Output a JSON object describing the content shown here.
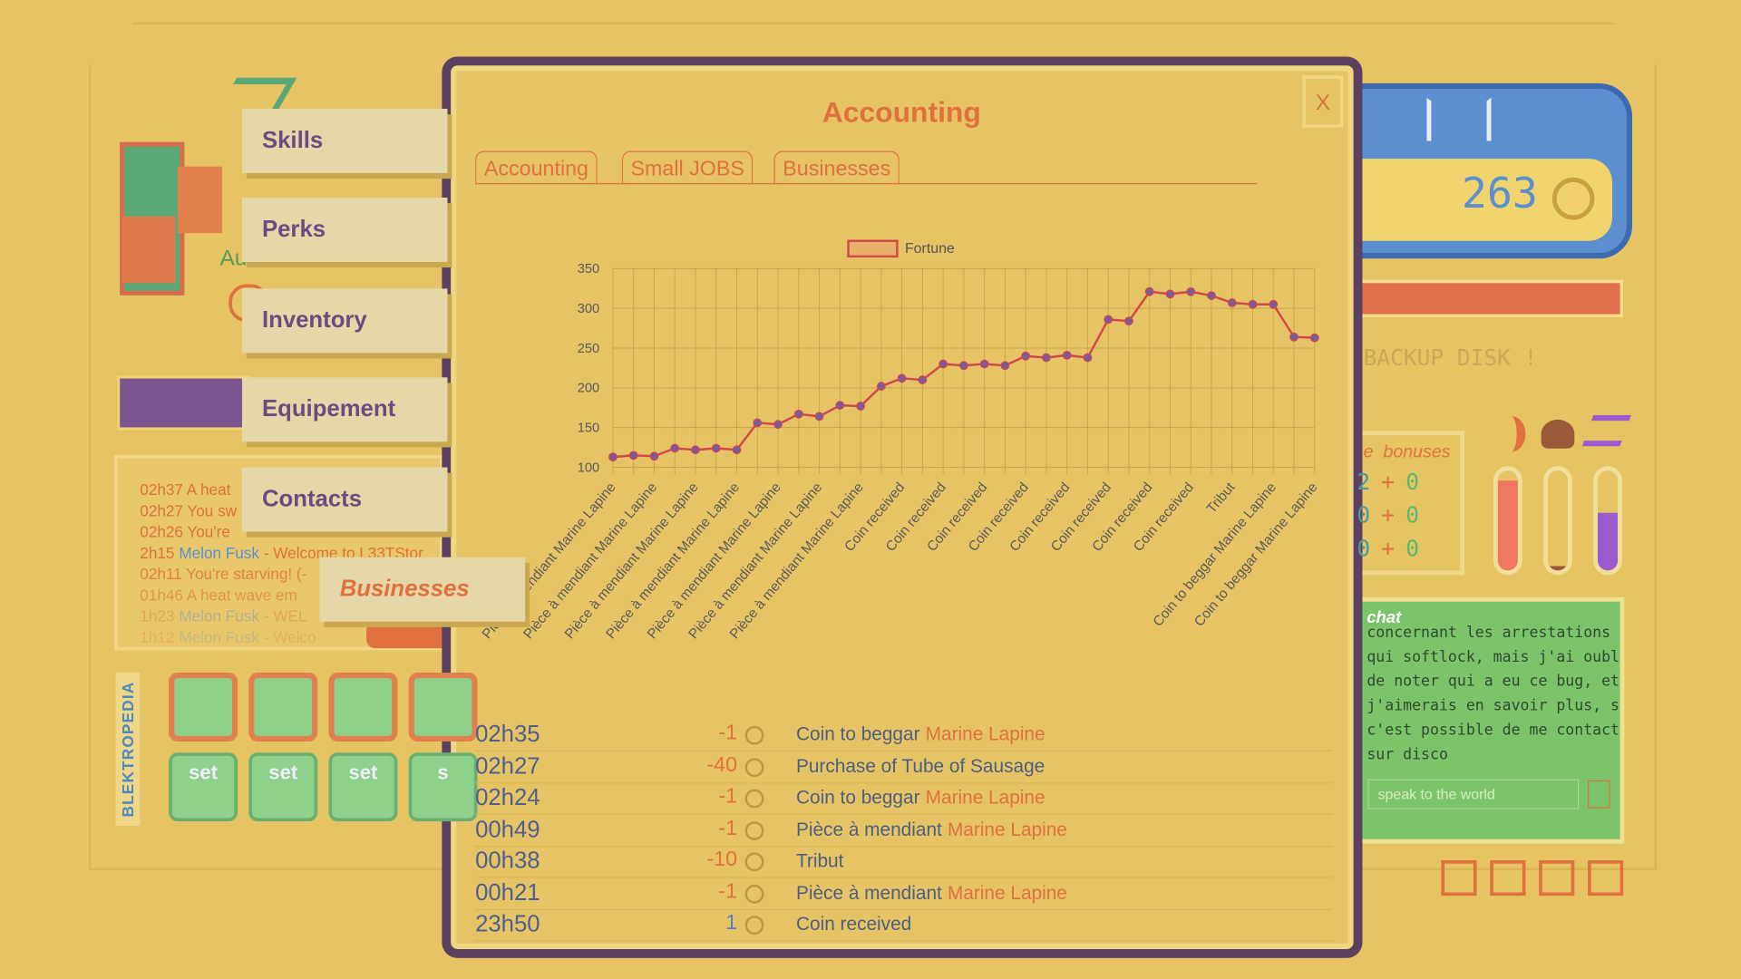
{
  "logo": {
    "subtitle": "Au"
  },
  "menu": [
    "Skills",
    "Perks",
    "Inventory",
    "Equipement",
    "Contacts",
    "Businesses"
  ],
  "log": [
    {
      "text": "02h37 A heat"
    },
    {
      "text": "02h27 You sw"
    },
    {
      "text": "02h26 You're"
    },
    {
      "time": "2h15",
      "user": "Melon Fusk",
      "text": "- Welcome to L33TStor"
    },
    {
      "text": "02h11 You're starving! (-"
    },
    {
      "text": "01h46 A heat wave em"
    },
    {
      "time": "1h23",
      "user": "Melon Fusk",
      "text": "- WEL"
    },
    {
      "time": "1h12",
      "user": "Melon Fusk",
      "text": "- Welco"
    }
  ],
  "wiki": "BLEKTROPEDIA",
  "set_buttons": [
    "set",
    "set",
    "set",
    "s"
  ],
  "modal": {
    "title": "Accounting",
    "close": "X",
    "tabs": [
      "Accounting",
      "Small JOBS",
      "Businesses"
    ]
  },
  "chart_data": {
    "type": "line",
    "legend": "Fortune",
    "categories": [
      "Pièce à mendiant Marine Lapine",
      null,
      "Pièce à mendiant Marine Lapine",
      null,
      "Pièce à mendiant Marine Lapine",
      null,
      "Pièce à mendiant Marine Lapine",
      null,
      "Pièce à mendiant Marine Lapine",
      null,
      "Pièce à mendiant Marine Lapine",
      null,
      "Pièce à mendiant Marine Lapine",
      null,
      "Coin received",
      null,
      "Coin received",
      null,
      "Coin received",
      null,
      "Coin received",
      null,
      "Coin received",
      null,
      "Coin received",
      null,
      "Coin received",
      null,
      "Coin received",
      null,
      "Tribut",
      null,
      "Coin to beggar Marine Lapine",
      null,
      "Coin to beggar Marine Lapine"
    ],
    "series": [
      {
        "name": "Fortune",
        "color": "#d2474a",
        "point_color": "#7b5a9e",
        "values": [
          113,
          115,
          114,
          124,
          122,
          124,
          122,
          156,
          154,
          167,
          164,
          178,
          177,
          202,
          212,
          210,
          230,
          228,
          230,
          228,
          240,
          238,
          241,
          238,
          286,
          284,
          321,
          318,
          321,
          316,
          307,
          305,
          305,
          264,
          263
        ]
      }
    ],
    "ylim": [
      100,
      350
    ],
    "yticks": [
      100,
      150,
      200,
      250,
      300,
      350
    ],
    "grid": true
  },
  "transactions": [
    {
      "time": "02h35",
      "amount": -1,
      "desc": "Coin to beggar",
      "name": "Marine Lapine"
    },
    {
      "time": "02h27",
      "amount": -40,
      "desc": "Purchase of Tube of Sausage"
    },
    {
      "time": "02h24",
      "amount": -1,
      "desc": "Coin to beggar",
      "name": "Marine Lapine"
    },
    {
      "time": "00h49",
      "amount": -1,
      "desc": "Pièce à mendiant",
      "name": "Marine Lapine"
    },
    {
      "time": "00h38",
      "amount": -10,
      "desc": "Tribut"
    },
    {
      "time": "00h21",
      "amount": -1,
      "desc": "Pièce à mendiant",
      "name": "Marine Lapine"
    },
    {
      "time": "23h50",
      "amount": 1,
      "desc": "Coin received"
    }
  ],
  "wallet": {
    "coins": 263
  },
  "backup": "BACKUP DISK !",
  "bonuses": {
    "title": "e  bonuses",
    "rows": [
      [
        "2",
        "+",
        "0"
      ],
      [
        "0",
        "+",
        "0"
      ],
      [
        "0",
        "+",
        "0"
      ]
    ]
  },
  "chat": {
    "title": "chat",
    "lines": [
      "concernant les arrestations",
      "qui softlock, mais j'ai oublié",
      "de noter qui a eu ce bug, et",
      "j'aimerais en savoir plus, si",
      "c'est possible de me contacter",
      "sur disco"
    ],
    "placeholder": "speak to the world"
  }
}
